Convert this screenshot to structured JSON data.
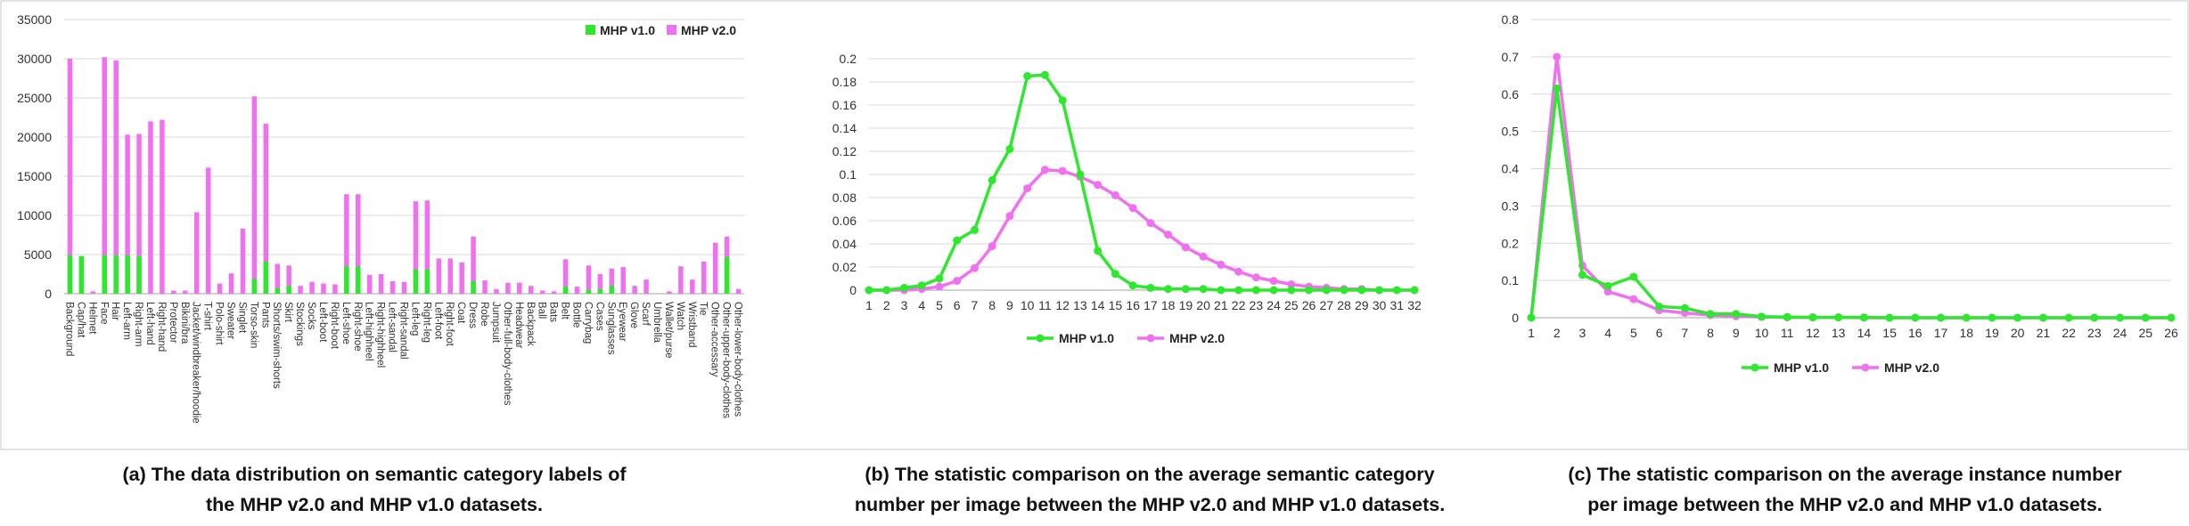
{
  "colors": {
    "v1": "#2ee82e",
    "v2": "#f170f1",
    "grid": "#d9d9d9",
    "axis": "#a6a6a6"
  },
  "chart_data": [
    {
      "type": "bar",
      "stacked": true,
      "caption": "(a) The data distribution on semantic category labels of the MHP v2.0 and MHP v1.0 datasets.",
      "caption_lines": [
        "(a) The data distribution on semantic category labels of",
        "the MHP v2.0 and MHP v1.0 datasets."
      ],
      "ylim": [
        0,
        35000
      ],
      "yticks": [
        0,
        5000,
        10000,
        15000,
        20000,
        25000,
        30000,
        35000
      ],
      "grid": true,
      "legend": "top-right",
      "categories": [
        "Background",
        "Cap/hat",
        "Helmet",
        "Face",
        "Hair",
        "Left-arm",
        "Right-arm",
        "Left-hand",
        "Right-hand",
        "Protector",
        "Bikini/bra",
        "Jacket/windbreaker/hoodie",
        "T-shirt",
        "Polo-shirt",
        "Sweater",
        "Singlet",
        "Torso-skin",
        "Pants",
        "Shorts/swim-shorts",
        "Skirt",
        "Stockings",
        "Socks",
        "Left-boot",
        "Right-boot",
        "Left-shoe",
        "Right-shoe",
        "Left-highheel",
        "Right-highheel",
        "Left-sandal",
        "Right-sandal",
        "Left-leg",
        "Right-leg",
        "Left-foot",
        "Right-foot",
        "Coat",
        "Dress",
        "Robe",
        "Jumpsuit",
        "Other-full-body-clothes",
        "Headwear",
        "Backpack",
        "Ball",
        "Bats",
        "Belt",
        "Bottle",
        "Carrybag",
        "Cases",
        "Sunglasses",
        "Eyewear",
        "Glove",
        "Scarf",
        "Umbrella",
        "Wallet/purse",
        "Watch",
        "Wristband",
        "Tie",
        "Other-accessary",
        "Other-upper-body-clothes",
        "Other-lower-body-clothes"
      ],
      "series": [
        {
          "name": "MHP v1.0",
          "values": [
            4900,
            4800,
            0,
            4900,
            4900,
            4900,
            4800,
            0,
            0,
            0,
            0,
            0,
            0,
            0,
            0,
            0,
            1900,
            4100,
            700,
            1000,
            0,
            0,
            0,
            0,
            3500,
            3500,
            0,
            0,
            0,
            0,
            3100,
            3100,
            0,
            0,
            0,
            1600,
            0,
            0,
            0,
            0,
            0,
            0,
            0,
            900,
            0,
            500,
            600,
            1000,
            0,
            0,
            0,
            0,
            0,
            0,
            0,
            0,
            0,
            4700,
            0
          ]
        },
        {
          "name": "MHP v2.0",
          "values": [
            30000,
            4800,
            300,
            30200,
            29800,
            20300,
            20400,
            22000,
            22200,
            400,
            400,
            10400,
            16100,
            1300,
            2600,
            8300,
            25200,
            21700,
            3800,
            3600,
            1000,
            1500,
            1300,
            1200,
            12700,
            12700,
            2400,
            2500,
            1600,
            1500,
            11800,
            11900,
            4500,
            4500,
            4000,
            7300,
            1700,
            600,
            1400,
            1400,
            1000,
            400,
            300,
            4400,
            900,
            3600,
            2500,
            3200,
            3400,
            1000,
            1800,
            0,
            300,
            3500,
            1800,
            4100,
            6500,
            7300,
            600
          ]
        }
      ]
    },
    {
      "type": "line",
      "caption": "(b) The statistic comparison on the average semantic category number per image between the MHP v2.0 and MHP v1.0 datasets.",
      "caption_lines": [
        "(b) The statistic comparison on the average semantic category",
        "number per image between the MHP v2.0 and MHP v1.0 datasets."
      ],
      "x": [
        1,
        2,
        3,
        4,
        5,
        6,
        7,
        8,
        9,
        10,
        11,
        12,
        13,
        14,
        15,
        16,
        17,
        18,
        19,
        20,
        21,
        22,
        23,
        24,
        25,
        26,
        27,
        28,
        29,
        30,
        31,
        32
      ],
      "ylim": [
        0,
        0.2
      ],
      "yticks": [
        "0",
        "0.02",
        "0.04",
        "0.06",
        "0.08",
        "0.1",
        "0.12",
        "0.14",
        "0.16",
        "0.18",
        "0.2"
      ],
      "grid": true,
      "legend": "bottom",
      "series": [
        {
          "name": "MHP v1.0",
          "values": [
            0,
            0,
            0.002,
            0.004,
            0.01,
            0.043,
            0.052,
            0.095,
            0.122,
            0.185,
            0.186,
            0.164,
            0.1,
            0.034,
            0.014,
            0.004,
            0.002,
            0.001,
            0.001,
            0.001,
            0,
            0,
            0,
            0,
            0,
            0,
            0,
            0,
            0,
            0,
            0,
            0
          ]
        },
        {
          "name": "MHP v2.0",
          "values": [
            0,
            0,
            0,
            0.001,
            0.003,
            0.008,
            0.019,
            0.038,
            0.064,
            0.088,
            0.104,
            0.103,
            0.098,
            0.091,
            0.082,
            0.071,
            0.058,
            0.048,
            0.037,
            0.029,
            0.022,
            0.016,
            0.011,
            0.008,
            0.005,
            0.003,
            0.002,
            0.001,
            0.001,
            0,
            0,
            0
          ]
        }
      ]
    },
    {
      "type": "line",
      "caption": "(c) The statistic comparison on the average instance number per image between the MHP v2.0 and MHP v1.0 datasets.",
      "caption_lines": [
        "(c) The statistic comparison on the average instance number",
        "per image between the MHP v2.0 and MHP v1.0 datasets."
      ],
      "x": [
        1,
        2,
        3,
        4,
        5,
        6,
        7,
        8,
        9,
        10,
        11,
        12,
        13,
        14,
        15,
        16,
        17,
        18,
        19,
        20,
        21,
        22,
        23,
        24,
        25,
        26
      ],
      "ylim": [
        0,
        0.8
      ],
      "yticks": [
        "0",
        "0.1",
        "0.2",
        "0.3",
        "0.4",
        "0.5",
        "0.6",
        "0.7",
        "0.8"
      ],
      "grid": true,
      "legend": "bottom",
      "series": [
        {
          "name": "MHP v1.0",
          "values": [
            0,
            0.615,
            0.115,
            0.085,
            0.11,
            0.03,
            0.026,
            0.01,
            0.01,
            0.003,
            0.002,
            0.001,
            0.001,
            0.001,
            0,
            0,
            0,
            0,
            0,
            0,
            0,
            0,
            0,
            0,
            0,
            0
          ]
        },
        {
          "name": "MHP v2.0",
          "values": [
            0,
            0.7,
            0.14,
            0.07,
            0.05,
            0.02,
            0.013,
            0.007,
            0.004,
            0.002,
            0.001,
            0.001,
            0.001,
            0,
            0,
            0,
            0,
            0,
            0,
            0,
            0,
            0,
            0,
            0,
            0,
            0
          ]
        }
      ]
    }
  ]
}
